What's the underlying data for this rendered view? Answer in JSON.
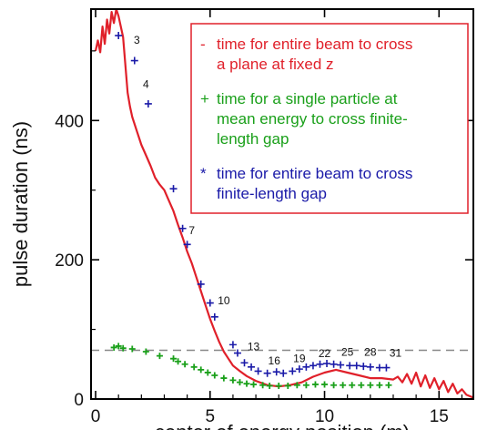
{
  "chart_data": {
    "type": "line",
    "xlabel": "center of energy position (m)",
    "ylabel": "pulse duration (ns)",
    "xlim": [
      -0.2,
      16.5
    ],
    "ylim": [
      0,
      560
    ],
    "xticks": [
      "0",
      "5",
      "10",
      "15"
    ],
    "yticks": [
      "0",
      "200",
      "400"
    ],
    "reference_line": {
      "y": 70,
      "style": "dashed",
      "color": "#888888"
    },
    "legend": {
      "placement": "top-right",
      "entries": [
        {
          "marker": "-",
          "color": "#e0202a",
          "lines": [
            "time for entire beam to cross",
            "a plane at fixed z"
          ]
        },
        {
          "marker": "+",
          "color": "#1aa01a",
          "lines": [
            "time for a single particle at",
            "mean energy to cross finite-",
            "length gap"
          ]
        },
        {
          "marker": "*",
          "color": "#1a1aa8",
          "lines": [
            "time for entire beam to cross",
            "finite-length gap"
          ]
        }
      ]
    },
    "series": [
      {
        "marker": "line",
        "color": "#e0202a",
        "x": [
          0,
          0.1,
          0.2,
          0.3,
          0.4,
          0.5,
          0.6,
          0.7,
          0.8,
          0.9,
          1.0,
          1.1,
          1.2,
          1.3,
          1.4,
          1.5,
          1.6,
          1.7,
          1.8,
          1.9,
          2.0,
          2.2,
          2.4,
          2.6,
          2.8,
          3.0,
          3.2,
          3.4,
          3.6,
          3.8,
          4.0,
          4.2,
          4.4,
          4.6,
          4.8,
          5.0,
          5.2,
          5.4,
          5.6,
          5.8,
          6.0,
          6.3,
          6.6,
          7.0,
          7.5,
          8.0,
          8.5,
          9.0,
          9.5,
          10.0,
          10.5,
          11.0,
          11.5,
          12.0,
          12.5,
          13.0,
          13.2,
          13.4,
          13.6,
          13.8,
          14.0,
          14.2,
          14.4,
          14.6,
          14.8,
          15.0,
          15.2,
          15.4,
          15.6,
          15.8,
          16.0,
          16.2,
          16.5
        ],
        "y": [
          500,
          515,
          498,
          535,
          510,
          545,
          525,
          556,
          540,
          560,
          550,
          535,
          520,
          480,
          440,
          420,
          405,
          395,
          385,
          375,
          365,
          350,
          335,
          318,
          308,
          300,
          285,
          270,
          250,
          232,
          212,
          195,
          175,
          155,
          135,
          115,
          98,
          82,
          68,
          58,
          48,
          40,
          33,
          26,
          20,
          18,
          20,
          24,
          32,
          38,
          42,
          38,
          34,
          30,
          30,
          28,
          32,
          24,
          36,
          22,
          38,
          18,
          34,
          16,
          30,
          14,
          26,
          10,
          22,
          8,
          14,
          6,
          2
        ]
      },
      {
        "marker": "+",
        "color": "#1aa01a",
        "x": [
          0.8,
          1.0,
          1.2,
          1.6,
          2.2,
          2.8,
          3.4,
          3.6,
          3.9,
          4.3,
          4.6,
          4.9,
          5.2,
          5.6,
          6.0,
          6.3,
          6.6,
          6.9,
          7.3,
          7.6,
          8.0,
          8.4,
          8.8,
          9.2,
          9.6,
          10.0,
          10.4,
          10.8,
          11.2,
          11.6,
          12.0,
          12.4,
          12.8
        ],
        "y": [
          74,
          76,
          73,
          72,
          68,
          62,
          58,
          54,
          50,
          46,
          42,
          38,
          34,
          30,
          27,
          24,
          22,
          21,
          20,
          19,
          19,
          19,
          20,
          20,
          21,
          21,
          20,
          20,
          20,
          20,
          20,
          20,
          20
        ]
      },
      {
        "marker": "*",
        "color": "#1a1aa8",
        "x": [
          1.0,
          1.7,
          2.3,
          3.4,
          3.8,
          4.0,
          4.6,
          5.0,
          5.2,
          6.0,
          6.2,
          6.5,
          6.8,
          7.1,
          7.5,
          7.9,
          8.2,
          8.6,
          8.9,
          9.2,
          9.5,
          9.8,
          10.1,
          10.4,
          10.7,
          11.1,
          11.4,
          11.7,
          12.0,
          12.4,
          12.7
        ],
        "y": [
          522,
          486,
          424,
          302,
          245,
          222,
          165,
          138,
          118,
          78,
          66,
          52,
          46,
          40,
          37,
          39,
          37,
          40,
          43,
          46,
          48,
          50,
          51,
          50,
          49,
          48,
          48,
          47,
          46,
          45,
          45
        ]
      }
    ],
    "gap_labels": [
      {
        "text": "3",
        "x": 1.8,
        "y": 510
      },
      {
        "text": "4",
        "x": 2.2,
        "y": 447
      },
      {
        "text": "7",
        "x": 4.2,
        "y": 237
      },
      {
        "text": "10",
        "x": 5.6,
        "y": 136
      },
      {
        "text": "13",
        "x": 6.9,
        "y": 70
      },
      {
        "text": "16",
        "x": 7.8,
        "y": 50
      },
      {
        "text": "19",
        "x": 8.9,
        "y": 53
      },
      {
        "text": "22",
        "x": 10.0,
        "y": 60
      },
      {
        "text": "25",
        "x": 11.0,
        "y": 62
      },
      {
        "text": "28",
        "x": 12.0,
        "y": 62
      },
      {
        "text": "31",
        "x": 13.1,
        "y": 61
      }
    ]
  }
}
